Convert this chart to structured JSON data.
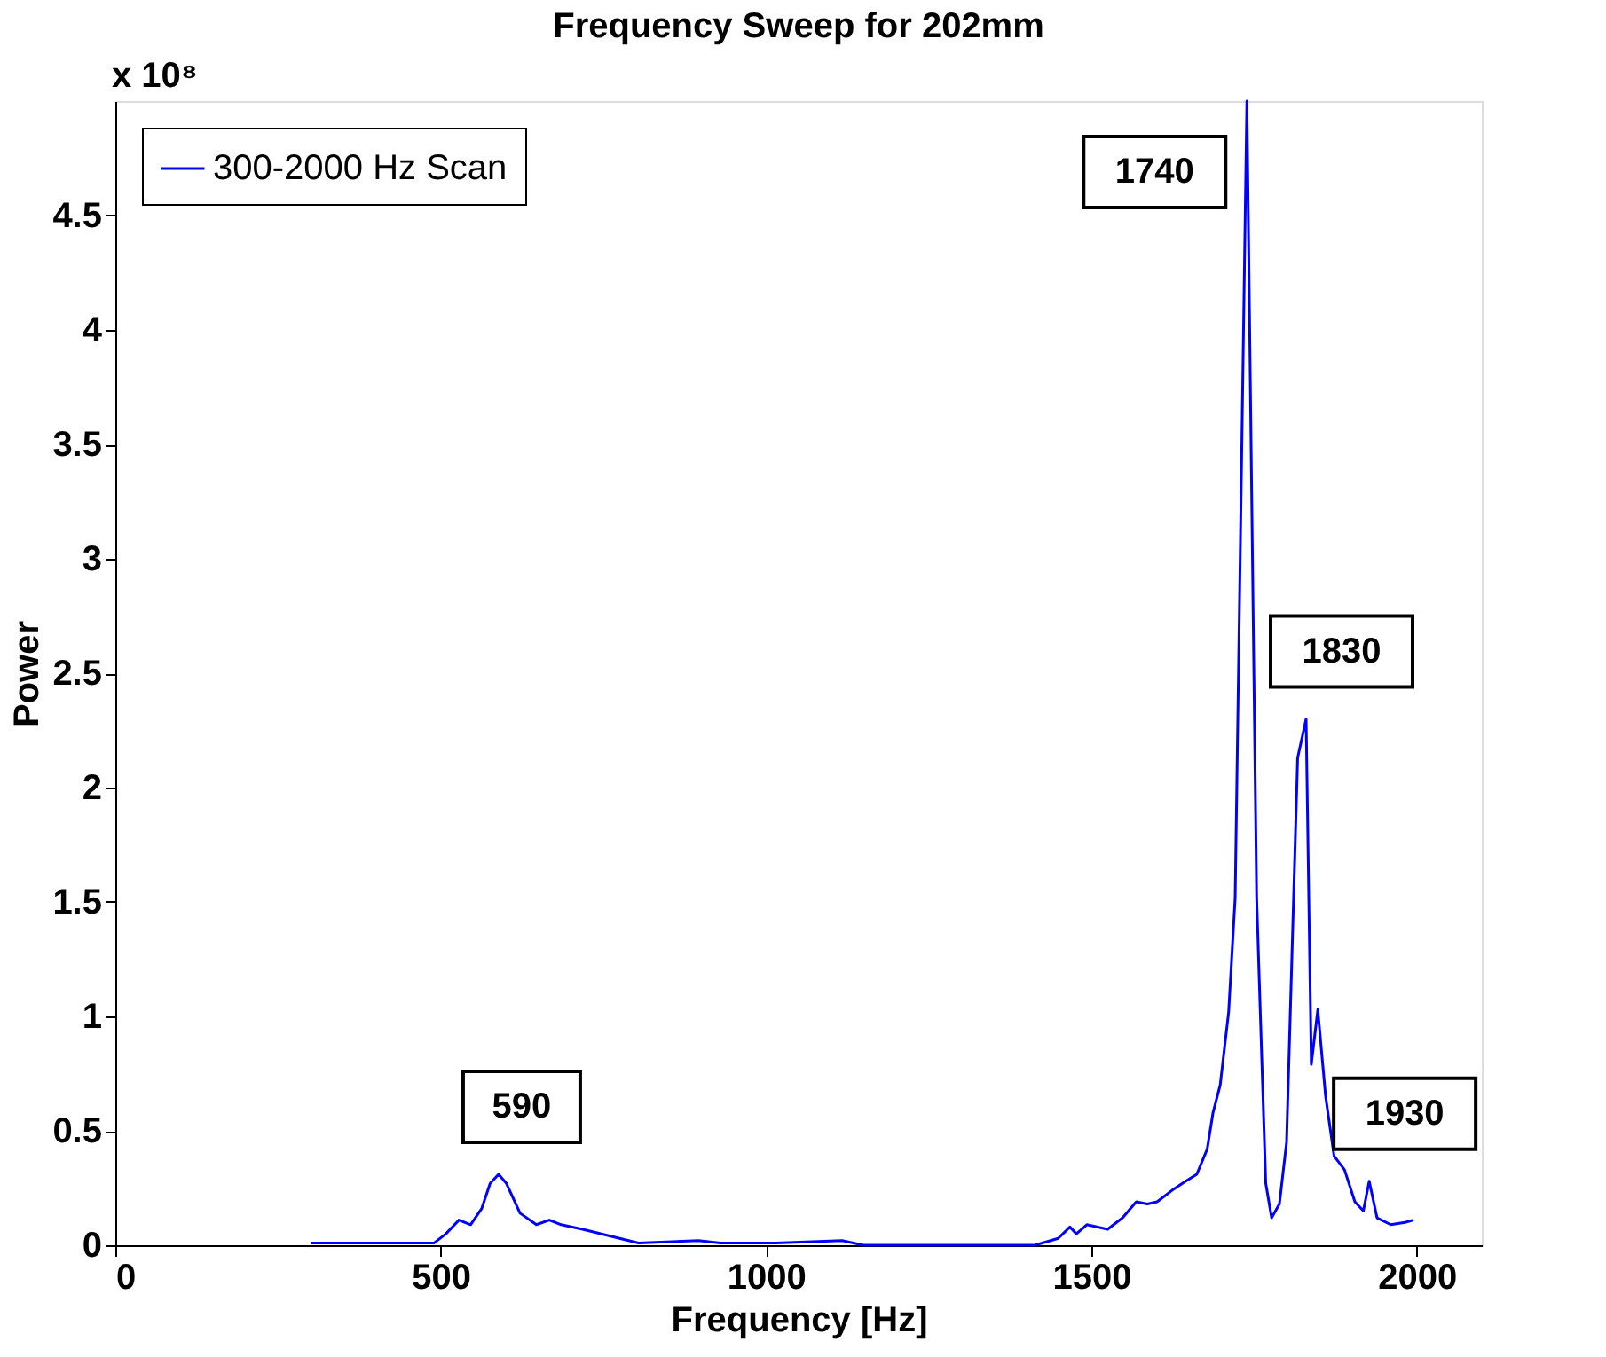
{
  "chart_data": {
    "type": "line",
    "title": "Frequency Sweep for 202mm",
    "xlabel": "Frequency [Hz]",
    "ylabel": "Power",
    "x": [
      300,
      490,
      508,
      528,
      546,
      563,
      576,
      589,
      601,
      622,
      647,
      667,
      685,
      718,
      761,
      804,
      896,
      930,
      1015,
      1117,
      1150,
      1413,
      1449,
      1467,
      1477,
      1493,
      1525,
      1548,
      1569,
      1586,
      1601,
      1624,
      1645,
      1662,
      1678,
      1687,
      1698,
      1711,
      1721,
      1739,
      1754,
      1768,
      1777,
      1789,
      1800,
      1817,
      1830,
      1838,
      1848,
      1860,
      1873,
      1889,
      1905,
      1918,
      1927,
      1939,
      1960,
      1982,
      1995
    ],
    "series": [
      {
        "name": "300-2000 Hz Scan",
        "color": "#0000ff",
        "values": [
          0.01,
          0.01,
          0.05,
          0.11,
          0.09,
          0.16,
          0.27,
          0.31,
          0.27,
          0.14,
          0.09,
          0.11,
          0.09,
          0.07,
          0.04,
          0.01,
          0.02,
          0.01,
          0.01,
          0.02,
          0.0,
          0.0,
          0.03,
          0.08,
          0.05,
          0.09,
          0.07,
          0.12,
          0.19,
          0.18,
          0.19,
          0.24,
          0.28,
          0.31,
          0.42,
          0.58,
          0.7,
          1.02,
          1.52,
          5.0,
          1.52,
          0.27,
          0.12,
          0.18,
          0.45,
          2.13,
          2.3,
          0.79,
          1.03,
          0.65,
          0.39,
          0.33,
          0.19,
          0.15,
          0.28,
          0.12,
          0.09,
          0.1,
          0.11
        ]
      }
    ],
    "xlim": [
      0,
      2100
    ],
    "ylim": [
      0,
      5
    ],
    "xticks": [
      0,
      500,
      1000,
      1500,
      2000
    ],
    "yticks": [
      0,
      0.5,
      1,
      1.5,
      2,
      2.5,
      3,
      3.5,
      4,
      4.5
    ],
    "annotations": [
      "x 10⁸",
      {
        "text": "590",
        "x": 589,
        "y": 0.31
      },
      {
        "text": "1740",
        "x": 1739,
        "y": 5.0
      },
      {
        "text": "1830",
        "x": 1830,
        "y": 2.3
      },
      {
        "text": "1930",
        "x": 1927,
        "y": 0.28
      }
    ],
    "grid": false,
    "legend": "top left",
    "marker": "none",
    "line_style": "solid"
  }
}
